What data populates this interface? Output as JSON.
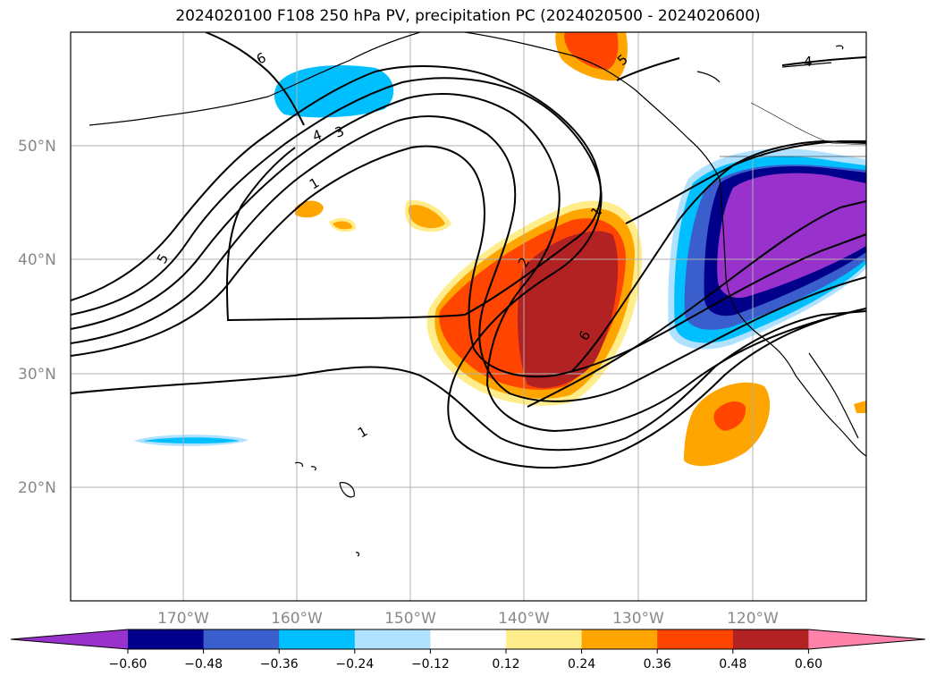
{
  "title": "2024020100 F108 250 hPa PV, precipitation PC (2024020500 - 2024020600)",
  "map": {
    "lat_labels": [
      "50°N",
      "40°N",
      "30°N",
      "20°N"
    ],
    "lon_labels": [
      "170°W",
      "160°W",
      "150°W",
      "140°W",
      "130°W",
      "120°W"
    ],
    "gridline_color": "#b0b0b0",
    "contour_labels": [
      "6",
      "4",
      "3",
      "1",
      "5",
      "2",
      "1",
      "6",
      "5",
      "4",
      "1"
    ]
  },
  "colorbar": {
    "ticks": [
      "−0.60",
      "−0.48",
      "−0.36",
      "−0.24",
      "−0.12",
      "0.12",
      "0.24",
      "0.36",
      "0.48",
      "0.60"
    ],
    "colors": [
      "#9932cc",
      "#00008b",
      "#3a5fcd",
      "#00bfff",
      "#b0e2ff",
      "#ffffff",
      "#ffec8b",
      "#ffa500",
      "#ff4500",
      "#b22222",
      "#ff82ab"
    ]
  }
}
